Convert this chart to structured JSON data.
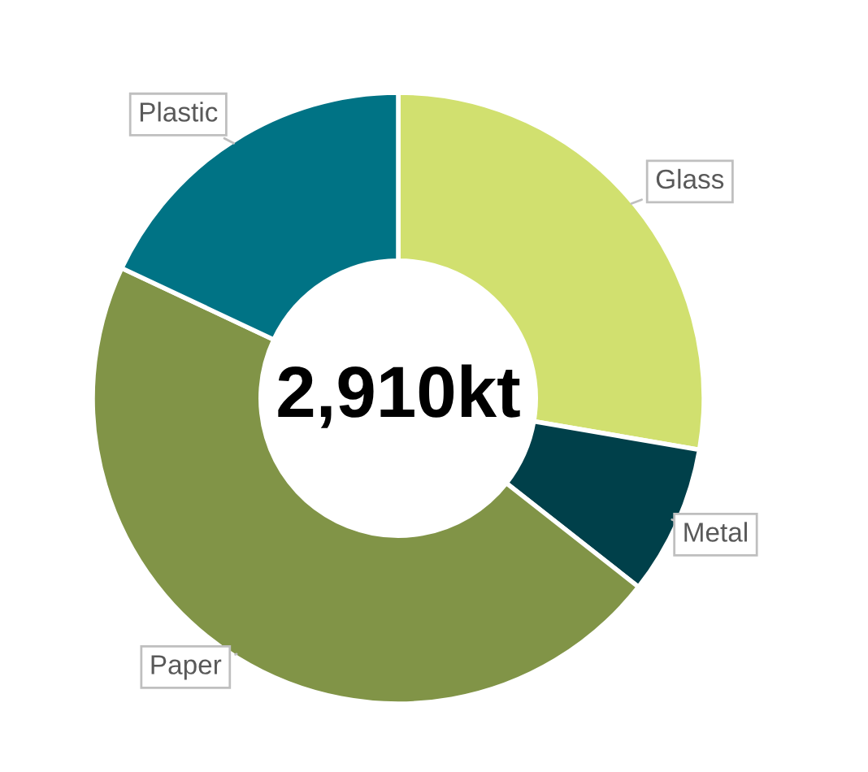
{
  "chart_data": {
    "type": "donut",
    "categories": [
      "Glass",
      "Metal",
      "Paper",
      "Plastic"
    ],
    "values": [
      27.7,
      7.9,
      46.4,
      18.0
    ],
    "colors": [
      "#d1e06f",
      "#00404a",
      "#819447",
      "#007385"
    ],
    "annotations": [
      "2,910kt"
    ]
  }
}
